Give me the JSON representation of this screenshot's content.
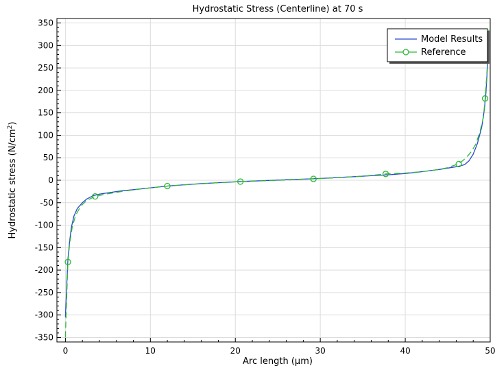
{
  "chart_data": {
    "type": "line",
    "title": "Hydrostatic Stress (Centerline) at 70 s",
    "xlabel": "Arc length (µm)",
    "ylabel_main": "Hydrostatic stress (N/cm",
    "ylabel_sup": "2",
    "ylabel_tail": ")",
    "xlim": [
      -1,
      50
    ],
    "ylim": [
      -360,
      360
    ],
    "xticks": [
      0,
      10,
      20,
      30,
      40,
      50
    ],
    "yticks": [
      -350,
      -300,
      -250,
      -200,
      -150,
      -100,
      -50,
      0,
      50,
      100,
      150,
      200,
      250,
      300,
      350
    ],
    "grid": true,
    "legend_position": "top-right",
    "series": [
      {
        "name": "Model Results",
        "color": "#2248d0",
        "style": "solid",
        "x": [
          0,
          0.1,
          0.2,
          0.3,
          0.5,
          0.7,
          1.0,
          1.4,
          2.0,
          2.5,
          3.2,
          4,
          5,
          6.5,
          8,
          10,
          12,
          14,
          16,
          18,
          20,
          22,
          24,
          26,
          28,
          30,
          32,
          34,
          36,
          38,
          40,
          42,
          44,
          45,
          46,
          46.5,
          47,
          47.5,
          48,
          48.5,
          49,
          49.3,
          49.5,
          49.7,
          49.85
        ],
        "y": [
          -305,
          -260,
          -215,
          -175,
          -135,
          -105,
          -80,
          -63,
          -50,
          -42,
          -35,
          -31,
          -28,
          -24,
          -21,
          -17,
          -13,
          -10,
          -7.5,
          -5.5,
          -3.5,
          -2,
          -0.5,
          1,
          2.5,
          4,
          6,
          8,
          10,
          12,
          15,
          19,
          24,
          27,
          30,
          32,
          35,
          43,
          58,
          82,
          118,
          155,
          195,
          260,
          318
        ]
      },
      {
        "name": "Reference",
        "color": "#2db836",
        "style": "dashed",
        "marker": "circle",
        "x": [
          0,
          0.1,
          0.3,
          0.5,
          0.8,
          1.2,
          1.8,
          2.5,
          3.5,
          5,
          7,
          9,
          12,
          15,
          18,
          20.6,
          23,
          26,
          29.2,
          32,
          35,
          37.7,
          40,
          42,
          44,
          45,
          46.2,
          46.8,
          47.3,
          47.8,
          48.3,
          48.8,
          49.2,
          49.4,
          49.6,
          49.75,
          49.85
        ],
        "y": [
          -350,
          -290,
          -182,
          -140,
          -105,
          -78,
          -58,
          -45,
          -36,
          -30,
          -24,
          -19,
          -13,
          -9,
          -5.5,
          -3,
          -1.5,
          0.5,
          3,
          5.5,
          9,
          14,
          16,
          19,
          24,
          28,
          36,
          44,
          53,
          64,
          80,
          108,
          140,
          182,
          235,
          290,
          340
        ],
        "marker_x": [
          0.3,
          3.5,
          12.0,
          20.6,
          29.2,
          37.7,
          46.3,
          49.4
        ],
        "marker_y": [
          -182,
          -36,
          -13,
          -3,
          3,
          14,
          36,
          182
        ]
      }
    ]
  }
}
